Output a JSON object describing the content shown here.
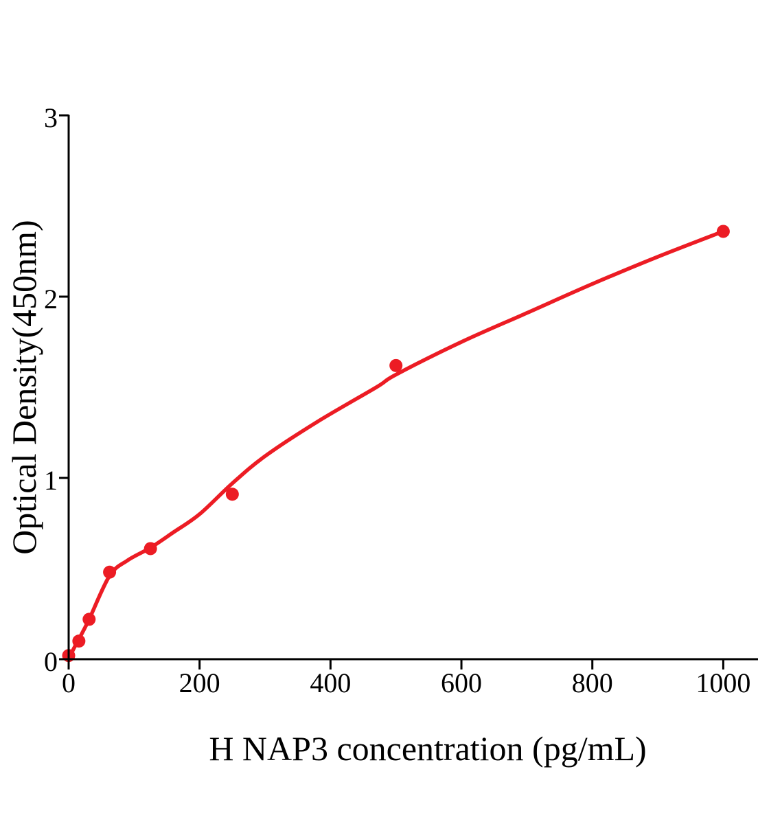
{
  "chart_data": {
    "type": "scatter",
    "title": "",
    "xlabel": "H NAP3 concentration (pg/mL)",
    "ylabel": "Optical Density(450nm)",
    "x_tick_labels": [
      "0",
      "200",
      "400",
      "600",
      "800",
      "1000"
    ],
    "x_tick_values": [
      0,
      200,
      400,
      600,
      800,
      1000
    ],
    "y_tick_labels": [
      "0",
      "1",
      "2",
      "3"
    ],
    "y_tick_values": [
      0,
      1,
      2,
      3
    ],
    "xlim": [
      0,
      1053
    ],
    "ylim": [
      0,
      3
    ],
    "grid": false,
    "legend": "none",
    "accent_color": "#EC1C24",
    "axis_color": "#000000",
    "series": [
      {
        "name": "standard-curve-points",
        "points": [
          {
            "x": 0,
            "y": 0.02
          },
          {
            "x": 15.6,
            "y": 0.1
          },
          {
            "x": 31.25,
            "y": 0.22
          },
          {
            "x": 62.5,
            "y": 0.48
          },
          {
            "x": 125,
            "y": 0.61
          },
          {
            "x": 250,
            "y": 0.91
          },
          {
            "x": 500,
            "y": 1.62
          },
          {
            "x": 1000,
            "y": 2.36
          }
        ]
      }
    ],
    "fit_curve": [
      [
        0,
        0.0
      ],
      [
        8,
        0.06
      ],
      [
        15.6,
        0.11
      ],
      [
        31.25,
        0.22
      ],
      [
        62.5,
        0.46
      ],
      [
        90,
        0.545
      ],
      [
        125,
        0.615
      ],
      [
        160,
        0.7
      ],
      [
        200,
        0.8
      ],
      [
        250,
        0.97
      ],
      [
        300,
        1.12
      ],
      [
        380,
        1.31
      ],
      [
        470,
        1.5
      ],
      [
        500,
        1.57
      ],
      [
        600,
        1.75
      ],
      [
        700,
        1.91
      ],
      [
        800,
        2.07
      ],
      [
        900,
        2.22
      ],
      [
        1000,
        2.36
      ]
    ]
  }
}
